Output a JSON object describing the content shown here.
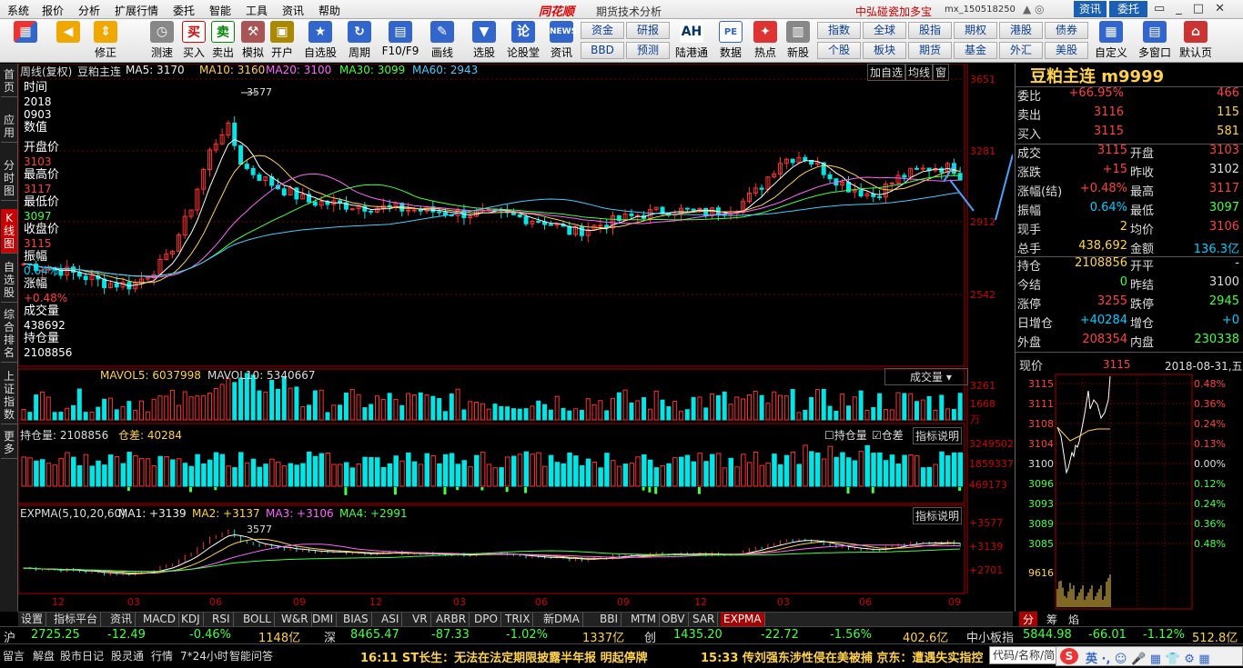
{
  "menu": {
    "items": [
      "系统",
      "报价",
      "分析",
      "扩展行情",
      "委托",
      "智能",
      "工具",
      "资讯",
      "帮助"
    ],
    "brand": "同花顺",
    "brand_sub": "期货技术分析",
    "account": "中弘碰瓷加多宝",
    "account_id": "mx_150518250",
    "zixun": "资讯",
    "weituo": "委托"
  },
  "toolbar": {
    "buttons": [
      {
        "label": "",
        "icon": "grid-icon",
        "color": "#e33"
      },
      {
        "label": "",
        "icon": "back-arrow-icon",
        "color": "#f0a800"
      },
      {
        "label": "修正",
        "icon": "up-down-arrow-icon",
        "color": "#f0a800"
      },
      {
        "label": "测速",
        "icon": "speed-icon",
        "color": "#f0a800"
      },
      {
        "label": "测速",
        "icon": "clock-icon",
        "color": "#888"
      },
      {
        "label": "买入",
        "icon": "buy-icon",
        "color": "#d00"
      },
      {
        "label": "卖出",
        "icon": "sell-icon",
        "color": "#080"
      },
      {
        "label": "模拟",
        "icon": "hammer-icon",
        "color": "#a55"
      },
      {
        "label": "开户",
        "icon": "lock-icon",
        "color": "#a80"
      },
      {
        "label": "自选股",
        "icon": "star-icon",
        "color": "#36c"
      },
      {
        "label": "周期",
        "icon": "cycle-icon",
        "color": "#36c"
      },
      {
        "label": "F10/F9",
        "icon": "f10-icon",
        "color": "#36c"
      },
      {
        "label": "画线",
        "icon": "pencil-icon",
        "color": "#36c"
      },
      {
        "label": "选股",
        "icon": "funnel-icon",
        "color": "#36c"
      },
      {
        "label": "论股堂",
        "icon": "forum-icon",
        "color": "#36c"
      },
      {
        "label": "资讯",
        "icon": "news-icon",
        "color": "#36c"
      }
    ],
    "group1": [
      "资金",
      "研报",
      "BBD",
      "预测"
    ],
    "ah": "陆港通",
    "pe": "数据",
    "hot": "热点",
    "newstock": "新股",
    "group2": [
      "指数",
      "全球",
      "期货",
      "港股",
      "债券",
      "个股",
      "板块",
      "期货",
      "基金",
      "外汇",
      "美股"
    ],
    "group2b": [
      "指数",
      "全球",
      "股指",
      "期权",
      "港股",
      "债券",
      "个股",
      "板块",
      "期货",
      "基金",
      "外汇",
      "美股"
    ],
    "custom": "自定义",
    "multiwin": "多窗口",
    "home": "默认页"
  },
  "sidetabs": [
    "首页",
    "应用",
    "分时图",
    "K线图",
    "自选股",
    "综合排名",
    "上证指数",
    "更多"
  ],
  "chart": {
    "header_left": "周线(复权)",
    "name": "豆粕主连",
    "ma5": "MA5: 3170",
    "ma10": "MA10: 3160",
    "ma20": "MA20: 3100",
    "ma30": "MA30: 3099",
    "ma60": "MA60: 2943",
    "btn_add": "加自选",
    "btn_line": "均线",
    "btn_win": "窗",
    "y_labels": [
      "3651",
      "3281",
      "2912",
      "2542"
    ],
    "peak_label": "3577",
    "vol_header": "MAVOL5: 6037998",
    "vol_header2": "MAVOL10: 5340667",
    "vol_select": "成交量",
    "vol_y": [
      "3261",
      "1668",
      "万"
    ],
    "oi_header": "持仓量: 2108856",
    "oi_diff": "仓差: 40284",
    "oi_cb1": "持仓量",
    "oi_cb2": "仓差",
    "oi_btn": "指标说明",
    "oi_y": [
      "3249502",
      "1859337",
      "469173"
    ],
    "expma_header": "EXPMA(5,10,20,60)",
    "expma_ma1": "MA1: +3139",
    "expma_ma2": "MA2: +3137",
    "expma_ma3": "MA3: +3106",
    "expma_ma4": "MA4: +2991",
    "expma_btn": "指标说明",
    "expma_y": [
      "+3577",
      "+3139",
      "+2701"
    ],
    "expma_peak": "3577",
    "x_labels": [
      "12",
      "03",
      "06",
      "09",
      "12",
      "03",
      "06",
      "09",
      "12",
      "03",
      "06",
      "09"
    ]
  },
  "infobox": {
    "time_label": "时间",
    "date1": "2018",
    "date2": "0903",
    "value_label": "数值",
    "open_label": "开盘价",
    "open": "3103",
    "high_label": "最高价",
    "high": "3117",
    "low_label": "最低价",
    "low": "3097",
    "close_label": "收盘价",
    "close": "3115",
    "amp_label": "振幅",
    "amp": "0.64%",
    "chg_label": "涨幅",
    "chg": "+0.48%",
    "vol_label": "成交量",
    "vol": "438692",
    "oi_label": "持仓量",
    "oi": "2108856"
  },
  "bottomtabs": [
    "设置",
    "指标平台",
    "资讯",
    "MACD",
    "KDJ",
    "RSI",
    "BOLL",
    "W&R",
    "DMI",
    "BIAS",
    "ASI",
    "VR",
    "ARBR",
    "DPO",
    "TRIX",
    "新DMA",
    "BBI",
    "MTM",
    "OBV",
    "SAR",
    "EXPMA"
  ],
  "right": {
    "title": "豆粕主连 m9999",
    "rows1": [
      {
        "k": "委比",
        "v": "+66.95%",
        "v2": "466",
        "c": "#ff4040",
        "c2": "#ff4040"
      },
      {
        "k": "卖出",
        "v": "3116",
        "v2": "115",
        "c": "#ff4040",
        "c2": "#ffd24a"
      },
      {
        "k": "买入",
        "v": "3115",
        "v2": "581",
        "c": "#ff4040",
        "c2": "#ffd24a"
      }
    ],
    "rows2": [
      {
        "k": "成交",
        "v": "3115",
        "k2": "开盘",
        "v2": "3103",
        "c": "#ff4040",
        "c2": "#ff4040"
      },
      {
        "k": "涨跌",
        "v": "+15",
        "k2": "昨收",
        "v2": "3102",
        "c": "#ff4040",
        "c2": "#ddd"
      },
      {
        "k": "涨幅(结)",
        "v": "+0.48%",
        "k2": "最高",
        "v2": "3117",
        "c": "#ff4040",
        "c2": "#ff4040"
      },
      {
        "k": "振幅",
        "v": "0.64%",
        "k2": "最低",
        "v2": "3097",
        "c": "#0cf",
        "c2": "#4f4"
      },
      {
        "k": "现手",
        "v": "2",
        "k2": "均价",
        "v2": "3106",
        "c": "#ffd24a",
        "c2": "#ff4040"
      },
      {
        "k": "总手",
        "v": "438,692",
        "k2": "金额",
        "v2": "136.3亿",
        "c": "#ffd24a",
        "c2": "#0cf"
      }
    ],
    "rows3": [
      {
        "k": "持仓",
        "v": "2108856",
        "k2": "开平",
        "v2": "-",
        "c": "#ffd24a",
        "c2": "#ddd"
      },
      {
        "k": "今结",
        "v": "0",
        "k2": "昨结",
        "v2": "3100",
        "c": "#4f4",
        "c2": "#ddd"
      },
      {
        "k": "涨停",
        "v": "3255",
        "k2": "跌停",
        "v2": "2945",
        "c": "#ff4040",
        "c2": "#4f4"
      },
      {
        "k": "日增仓",
        "v": "+40284",
        "k2": "增仓",
        "v2": "+0",
        "c": "#0cf",
        "c2": "#0cf"
      },
      {
        "k": "外盘",
        "v": "208354",
        "k2": "内盘",
        "v2": "230338",
        "c": "#ff4040",
        "c2": "#4f4"
      }
    ],
    "mini_label": "现价",
    "mini_price": "3115",
    "mini_date": "2018-08-31,五",
    "mini_left": [
      "3115",
      "3111",
      "3108",
      "3104",
      "3100",
      "3096",
      "3093",
      "3089",
      "3085"
    ],
    "mini_right": [
      "0.48%",
      "0.36%",
      "0.24%",
      "0.13%",
      "0.00%",
      "0.12%",
      "0.24%",
      "0.36%",
      "0.48%"
    ],
    "mini_vol": "9616",
    "tabs": [
      "分",
      "筹",
      "焰"
    ]
  },
  "indexbar": {
    "sh_label": "沪",
    "sh": "2725.25",
    "sh_chg": "-12.49",
    "sh_pct": "-0.46%",
    "sh_amt": "1148亿",
    "sz_label": "深",
    "sz": "8465.47",
    "sz_chg": "-87.33",
    "sz_pct": "-1.02%",
    "sz_amt": "1337亿",
    "cy_label": "创",
    "cy": "1435.20",
    "cy_chg": "-22.72",
    "cy_pct": "-1.56%",
    "cy_amt": "402.6亿",
    "zx_label": "中小板指",
    "zx": "5844.98",
    "zx_chg": "-66.01",
    "zx_pct": "-1.12%",
    "zx_amt": "512.8亿"
  },
  "status": {
    "items": [
      "留言",
      "解盘",
      "股市日记",
      "股灵通",
      "行情",
      "7*24小时",
      "智能问答"
    ],
    "news1": "16:11 ST长生：无法在法定期限披露半年报 明起停牌",
    "news2": "15:33 传刘强东涉性侵在美被捕 京东：遭遇失实指控",
    "search": "代码/名称/简"
  }
}
